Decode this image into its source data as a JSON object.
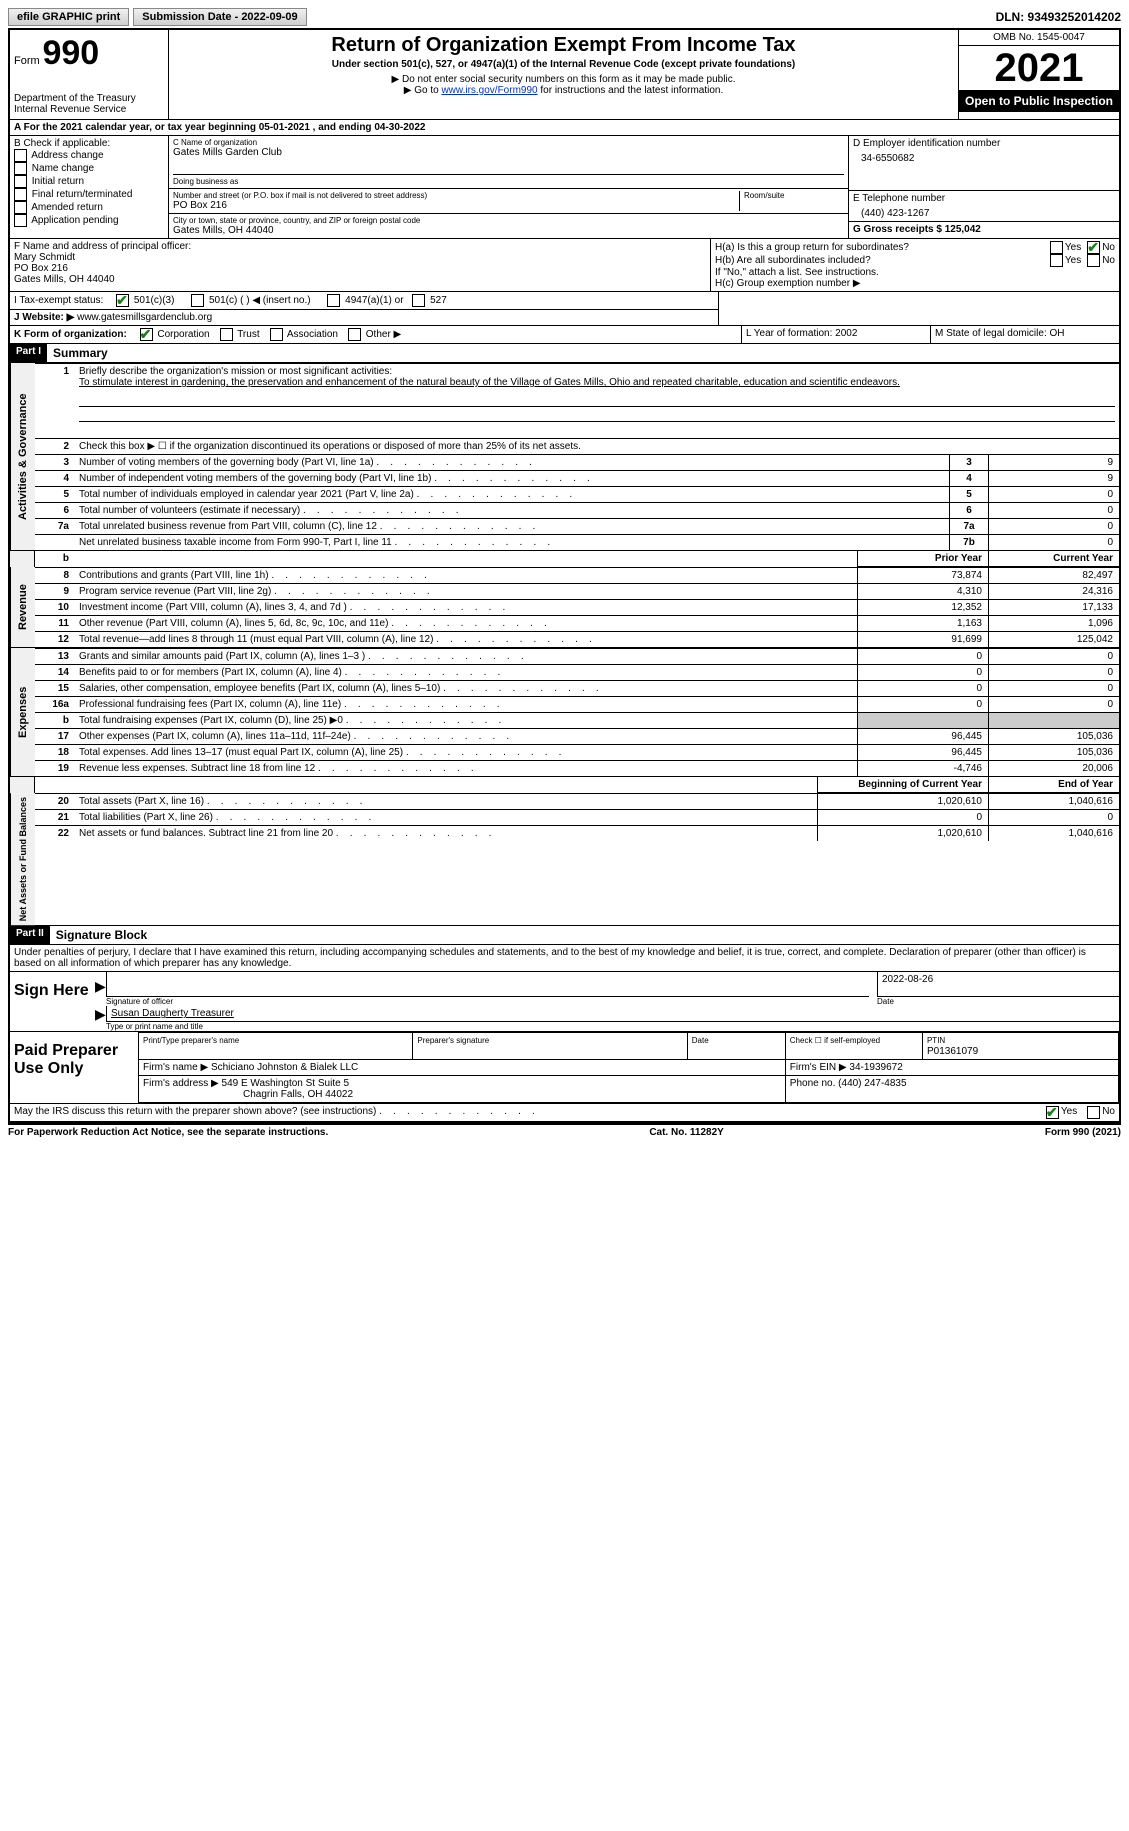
{
  "topbar": {
    "efile_label": "efile GRAPHIC print",
    "submission_label": "Submission Date - 2022-09-09",
    "dln_label": "DLN: 93493252014202"
  },
  "header": {
    "form_label": "Form",
    "form_number": "990",
    "dept": "Department of the Treasury",
    "irs": "Internal Revenue Service",
    "title": "Return of Organization Exempt From Income Tax",
    "subtitle": "Under section 501(c), 527, or 4947(a)(1) of the Internal Revenue Code (except private foundations)",
    "note1": "▶ Do not enter social security numbers on this form as it may be made public.",
    "note2_prefix": "▶ Go to ",
    "note2_link": "www.irs.gov/Form990",
    "note2_suffix": " for instructions and the latest information.",
    "omb": "OMB No. 1545-0047",
    "year": "2021",
    "open": "Open to Public Inspection"
  },
  "row_a": "A For the 2021 calendar year, or tax year beginning 05-01-2021    , and ending 04-30-2022",
  "col_b": {
    "label": "B Check if applicable:",
    "opts": [
      "Address change",
      "Name change",
      "Initial return",
      "Final return/terminated",
      "Amended return",
      "Application pending"
    ]
  },
  "col_c": {
    "name_label": "C Name of organization",
    "name": "Gates Mills Garden Club",
    "dba_label": "Doing business as",
    "addr_label": "Number and street (or P.O. box if mail is not delivered to street address)",
    "room_label": "Room/suite",
    "addr": "PO Box 216",
    "city_label": "City or town, state or province, country, and ZIP or foreign postal code",
    "city": "Gates Mills, OH  44040"
  },
  "col_d": {
    "ein_label": "D Employer identification number",
    "ein": "34-6550682",
    "phone_label": "E Telephone number",
    "phone": "(440) 423-1267",
    "gross_label": "G Gross receipts $ 125,042"
  },
  "f_block": {
    "label": "F  Name and address of principal officer:",
    "name": "Mary Schmidt",
    "addr1": "PO Box 216",
    "addr2": "Gates Mills, OH   44040"
  },
  "h_block": {
    "ha_label": "H(a)  Is this a group return for subordinates?",
    "hb_label": "H(b)  Are all subordinates included?",
    "hb_note": "If \"No,\" attach a list. See instructions.",
    "hc_label": "H(c)  Group exemption number ▶",
    "yes": "Yes",
    "no": "No"
  },
  "i_row": {
    "label": "I     Tax-exempt status:",
    "opt1": "501(c)(3)",
    "opt2": "501(c) (  ) ◀ (insert no.)",
    "opt3": "4947(a)(1) or",
    "opt4": "527"
  },
  "j_row": {
    "label": "J    Website: ▶",
    "value": " www.gatesmillsgardenclub.org"
  },
  "k_row": {
    "label": "K Form of organization:",
    "opts": [
      "Corporation",
      "Trust",
      "Association",
      "Other ▶"
    ],
    "l_label": "L Year of formation: 2002",
    "m_label": "M State of legal domicile: OH"
  },
  "part1": {
    "header": "Part I",
    "title": "Summary",
    "line1_label": "Briefly describe the organization's mission or most significant activities:",
    "line1_text": "To stimulate interest in gardening, the preservation and enhancement of the natural beauty of the Village of Gates Mills, Ohio and repeated charitable, education and scientific endeavors.",
    "line2": "Check this box ▶ ☐  if the organization discontinued its operations or disposed of more than 25% of its net assets."
  },
  "governance": {
    "section_label": "Activities & Governance",
    "rows": [
      {
        "n": "1",
        "desc": "Briefly describe the organization's mission or most significant activities:"
      },
      {
        "n": "3",
        "desc": "Number of voting members of the governing body (Part VI, line 1a)",
        "box": "3",
        "val": "9"
      },
      {
        "n": "4",
        "desc": "Number of independent voting members of the governing body (Part VI, line 1b)",
        "box": "4",
        "val": "9"
      },
      {
        "n": "5",
        "desc": "Total number of individuals employed in calendar year 2021 (Part V, line 2a)",
        "box": "5",
        "val": "0"
      },
      {
        "n": "6",
        "desc": "Total number of volunteers (estimate if necessary)",
        "box": "6",
        "val": "0"
      },
      {
        "n": "7a",
        "desc": "Total unrelated business revenue from Part VIII, column (C), line 12",
        "box": "7a",
        "val": "0"
      },
      {
        "n": "",
        "desc": "Net unrelated business taxable income from Form 990-T, Part I, line 11",
        "box": "7b",
        "val": "0"
      }
    ]
  },
  "revenue": {
    "section_label": "Revenue",
    "header_prior": "Prior Year",
    "header_current": "Current Year",
    "rows": [
      {
        "n": "8",
        "desc": "Contributions and grants (Part VIII, line 1h)",
        "prior": "73,874",
        "curr": "82,497"
      },
      {
        "n": "9",
        "desc": "Program service revenue (Part VIII, line 2g)",
        "prior": "4,310",
        "curr": "24,316"
      },
      {
        "n": "10",
        "desc": "Investment income (Part VIII, column (A), lines 3, 4, and 7d )",
        "prior": "12,352",
        "curr": "17,133"
      },
      {
        "n": "11",
        "desc": "Other revenue (Part VIII, column (A), lines 5, 6d, 8c, 9c, 10c, and 11e)",
        "prior": "1,163",
        "curr": "1,096"
      },
      {
        "n": "12",
        "desc": "Total revenue—add lines 8 through 11 (must equal Part VIII, column (A), line 12)",
        "prior": "91,699",
        "curr": "125,042"
      }
    ]
  },
  "expenses": {
    "section_label": "Expenses",
    "rows": [
      {
        "n": "13",
        "desc": "Grants and similar amounts paid (Part IX, column (A), lines 1–3 )",
        "prior": "0",
        "curr": "0"
      },
      {
        "n": "14",
        "desc": "Benefits paid to or for members (Part IX, column (A), line 4)",
        "prior": "0",
        "curr": "0"
      },
      {
        "n": "15",
        "desc": "Salaries, other compensation, employee benefits (Part IX, column (A), lines 5–10)",
        "prior": "0",
        "curr": "0"
      },
      {
        "n": "16a",
        "desc": "Professional fundraising fees (Part IX, column (A), line 11e)",
        "prior": "0",
        "curr": "0"
      },
      {
        "n": "b",
        "desc": "Total fundraising expenses (Part IX, column (D), line 25) ▶0",
        "prior": "shade",
        "curr": "shade"
      },
      {
        "n": "17",
        "desc": "Other expenses (Part IX, column (A), lines 11a–11d, 11f–24e)",
        "prior": "96,445",
        "curr": "105,036"
      },
      {
        "n": "18",
        "desc": "Total expenses. Add lines 13–17 (must equal Part IX, column (A), line 25)",
        "prior": "96,445",
        "curr": "105,036"
      },
      {
        "n": "19",
        "desc": "Revenue less expenses. Subtract line 18 from line 12",
        "prior": "-4,746",
        "curr": "20,006"
      }
    ]
  },
  "netassets": {
    "section_label": "Net Assets or Fund Balances",
    "header_begin": "Beginning of Current Year",
    "header_end": "End of Year",
    "rows": [
      {
        "n": "20",
        "desc": "Total assets (Part X, line 16)",
        "prior": "1,020,610",
        "curr": "1,040,616"
      },
      {
        "n": "21",
        "desc": "Total liabilities (Part X, line 26)",
        "prior": "0",
        "curr": "0"
      },
      {
        "n": "22",
        "desc": "Net assets or fund balances. Subtract line 21 from line 20",
        "prior": "1,020,610",
        "curr": "1,040,616"
      }
    ]
  },
  "part2": {
    "header": "Part II",
    "title": "Signature Block",
    "declaration": "Under penalties of perjury, I declare that I have examined this return, including accompanying schedules and statements, and to the best of my knowledge and belief, it is true, correct, and complete. Declaration of preparer (other than officer) is based on all information of which preparer has any knowledge."
  },
  "sign": {
    "label": "Sign Here",
    "sig_label": "Signature of officer",
    "date": "2022-08-26",
    "date_label": "Date",
    "name": "Susan Daugherty Treasurer",
    "name_label": "Type or print name and title"
  },
  "preparer": {
    "label": "Paid Preparer Use Only",
    "h1": "Print/Type preparer's name",
    "h2": "Preparer's signature",
    "h3": "Date",
    "h4_check": "Check ☐ if self-employed",
    "h5": "PTIN",
    "ptin": "P01361079",
    "firm_name_label": "Firm's name      ▶",
    "firm_name": "Schiciano Johnston & Bialek LLC",
    "firm_ein_label": "Firm's EIN ▶",
    "firm_ein": "34-1939672",
    "firm_addr_label": "Firm's address ▶",
    "firm_addr1": "549 E Washington St Suite 5",
    "firm_addr2": "Chagrin Falls, OH  44022",
    "phone_label": "Phone no.",
    "phone": "(440) 247-4835"
  },
  "may_discuss": "May the IRS discuss this return with the preparer shown above? (see instructions)",
  "footer": {
    "left": "For Paperwork Reduction Act Notice, see the separate instructions.",
    "mid": "Cat. No. 11282Y",
    "right": "Form 990 (2021)"
  }
}
